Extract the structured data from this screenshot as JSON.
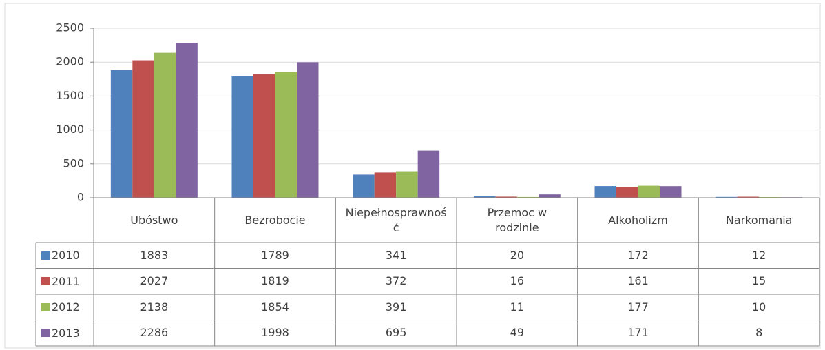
{
  "chart_data": {
    "type": "bar",
    "categories": [
      "Ubóstwo",
      "Bezrobocie",
      "Niepełnosprawność",
      "Przemoc w rodzinie",
      "Alkoholizm",
      "Narkomania"
    ],
    "series": [
      {
        "name": "2010",
        "color": "#4f81bd",
        "values": [
          1883,
          1789,
          341,
          20,
          172,
          12
        ]
      },
      {
        "name": "2011",
        "color": "#c0504d",
        "values": [
          2027,
          1819,
          372,
          16,
          161,
          15
        ]
      },
      {
        "name": "2012",
        "color": "#9bbb59",
        "values": [
          2138,
          1854,
          391,
          11,
          177,
          10
        ]
      },
      {
        "name": "2013",
        "color": "#8064a2",
        "values": [
          2286,
          1998,
          695,
          49,
          171,
          8
        ]
      }
    ],
    "ylim": [
      0,
      2500
    ],
    "yticks": [
      0,
      500,
      1000,
      1500,
      2000,
      2500
    ],
    "grid": true,
    "data_table": true
  }
}
